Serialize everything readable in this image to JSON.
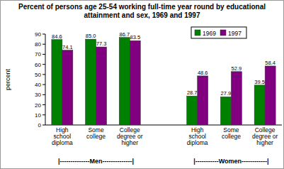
{
  "chart_data": {
    "type": "bar",
    "title": "Percent of persons age 25-54 working full-time year round by educational attainment and sex, 1969 and 1997",
    "y_label": "percent",
    "categories": [
      "High school diploma",
      "Some college",
      "College degree or higher",
      null,
      "High school diploma",
      "Some college",
      "College degree or higher"
    ],
    "series": [
      {
        "name": "1969",
        "color": "#008000",
        "values": [
          84.6,
          85,
          86.7,
          null,
          28.7,
          27.9,
          39.5
        ],
        "value_labels": [
          "84.6",
          "85.0",
          "86.7",
          null,
          "28.7",
          "27.9",
          "39.5"
        ]
      },
      {
        "name": "1997",
        "color": "#800080",
        "values": [
          74.1,
          77.3,
          83.5,
          null,
          48.6,
          52.9,
          58.4
        ]
      }
    ],
    "ylim": [
      0,
      90
    ],
    "yticks": [
      0,
      10,
      20,
      30,
      40,
      50,
      60,
      70,
      80,
      90
    ],
    "grid": false,
    "legend": "upper right",
    "data_labels": true,
    "annotations": [
      "|--------------Men--------------|",
      "|-----------Women------------|"
    ]
  }
}
